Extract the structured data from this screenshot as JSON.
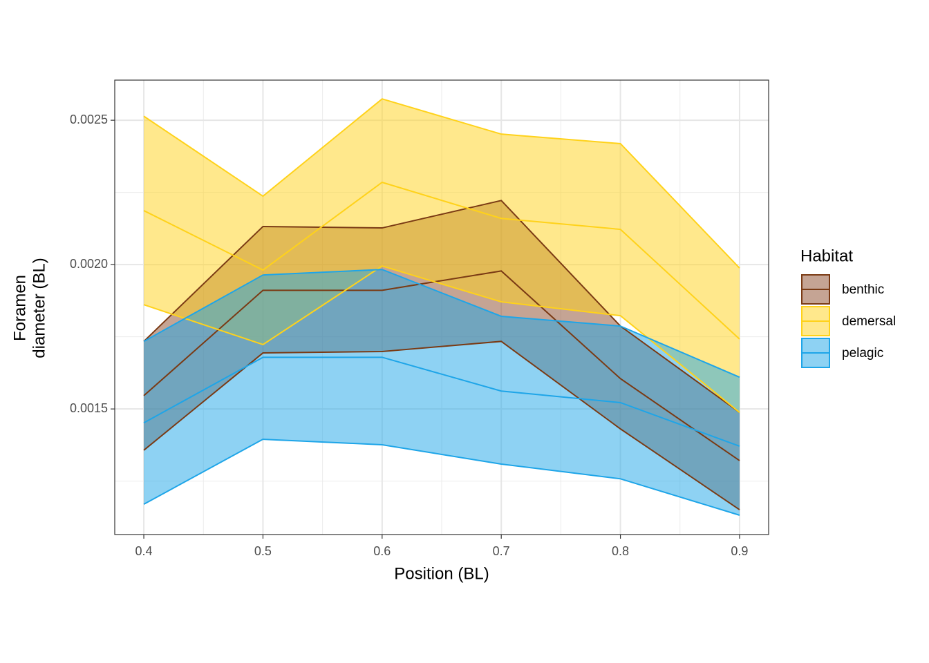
{
  "chart_data": {
    "type": "ribbon",
    "xlabel": "Position (BL)",
    "ylabel": [
      "Foramen",
      "diameter (BL)"
    ],
    "legend_title": "Habitat",
    "x": [
      0.4,
      0.5,
      0.6,
      0.7,
      0.8,
      0.9
    ],
    "xlim": [
      0.3756,
      0.9244
    ],
    "xticks": [
      0.4,
      0.5,
      0.6,
      0.7,
      0.8,
      0.9
    ],
    "ylim": [
      0.001065,
      0.002639
    ],
    "yticks": [
      0.0015,
      {
        "value": 0.002,
        "label": "0.0020"
      },
      0.0025
    ],
    "grid": true,
    "legend": "right",
    "series": [
      {
        "name": "benthic",
        "color": "#7a3a14",
        "fill": "#8b4a2a",
        "values": [
          0.001546,
          0.001911,
          0.001911,
          0.001978,
          0.001605,
          0.001321
        ],
        "upper": [
          0.001734,
          0.002132,
          0.002127,
          0.002222,
          0.001787,
          0.001488
        ],
        "lower": [
          0.001357,
          0.001694,
          0.001699,
          0.001734,
          0.001431,
          0.001151
        ]
      },
      {
        "name": "demersal",
        "color": "#ffd21a",
        "fill": "#ffd21a",
        "values": [
          0.002187,
          0.001981,
          0.002285,
          0.00216,
          0.002122,
          0.001742
        ],
        "upper": [
          0.002514,
          0.002237,
          0.002574,
          0.002452,
          0.002419,
          0.001988
        ],
        "lower": [
          0.001861,
          0.001723,
          0.001995,
          0.001871,
          0.001823,
          0.001488
        ]
      },
      {
        "name": "pelagic",
        "color": "#1ea5e8",
        "fill": "#1ea5e8",
        "values": [
          0.001452,
          0.001679,
          0.001679,
          0.001562,
          0.001522,
          0.001371
        ],
        "upper": [
          0.001734,
          0.001964,
          0.001983,
          0.001821,
          0.001787,
          0.00161
        ],
        "lower": [
          0.00117,
          0.001395,
          0.001376,
          0.001309,
          0.001258,
          0.001132
        ]
      }
    ]
  }
}
